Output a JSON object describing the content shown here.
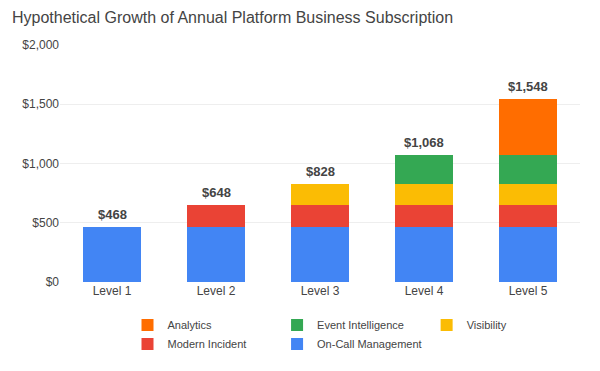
{
  "chart_data": {
    "type": "bar",
    "stacked": true,
    "title": "Hypothetical Growth of Annual Platform Business Subscription",
    "categories": [
      "Level 1",
      "Level 2",
      "Level 3",
      "Level 4",
      "Level 5"
    ],
    "series": [
      {
        "name": "On-Call Management",
        "color": "#4285F4",
        "values": [
          468,
          468,
          468,
          468,
          468
        ]
      },
      {
        "name": "Modern Incident",
        "color": "#EA4335",
        "values": [
          0,
          180,
          180,
          180,
          180
        ]
      },
      {
        "name": "Visibility",
        "color": "#FBBC04",
        "values": [
          0,
          0,
          180,
          180,
          180
        ]
      },
      {
        "name": "Event Intelligence",
        "color": "#34A853",
        "values": [
          0,
          0,
          0,
          240,
          240
        ]
      },
      {
        "name": "Analytics",
        "color": "#FF6D00",
        "values": [
          0,
          0,
          0,
          0,
          480
        ]
      }
    ],
    "totals": [
      {
        "value": 468,
        "label": "$468"
      },
      {
        "value": 648,
        "label": "$648"
      },
      {
        "value": 828,
        "label": "$828"
      },
      {
        "value": 1068,
        "label": "$1,068"
      },
      {
        "value": 1548,
        "label": "$1,548"
      }
    ],
    "ylim": [
      0,
      2000
    ],
    "yticks": [
      {
        "value": 0,
        "label": "$0"
      },
      {
        "value": 500,
        "label": "$500"
      },
      {
        "value": 1000,
        "label": "$1,000"
      },
      {
        "value": 1500,
        "label": "$1,500"
      },
      {
        "value": 2000,
        "label": "$2,000"
      }
    ],
    "grid": true,
    "legend": "bottom"
  }
}
